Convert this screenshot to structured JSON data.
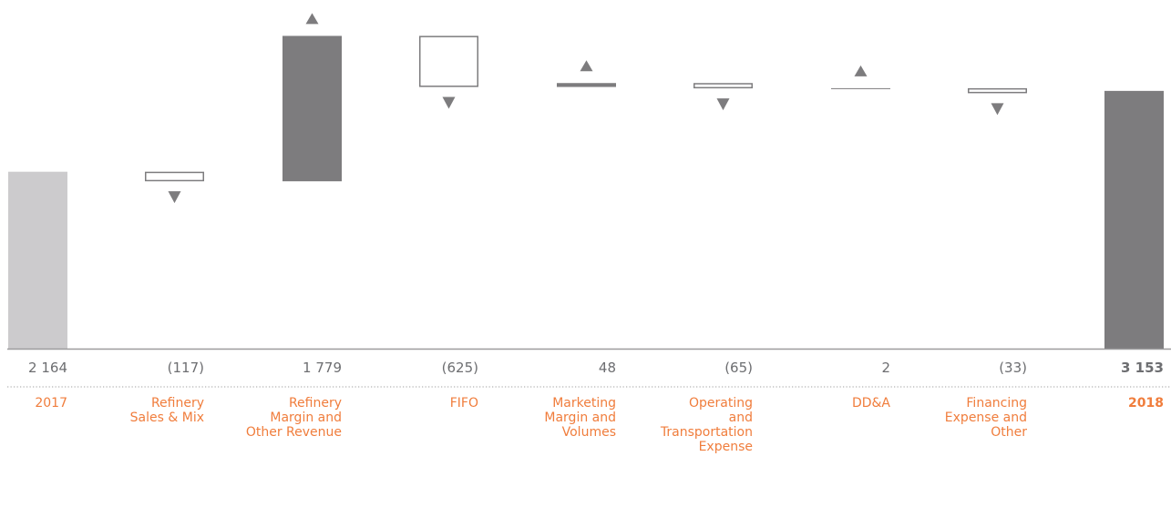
{
  "title": "",
  "colors": {
    "start_bar": "#cccbcd",
    "end_bar": "#7d7c7e",
    "increase": "#7d7c7e",
    "decrease_outline": "#7d7c7e",
    "value_text": "#6d6e71",
    "category_text": "#f07d3c",
    "baseline": "#9c9b9d",
    "dotted_rule": "#b5b5b5",
    "arrow": "#7d7c7e"
  },
  "chart_data": {
    "type": "waterfall",
    "units": "",
    "start": {
      "label": "2017",
      "value": 2164,
      "display": "2 164"
    },
    "steps": [
      {
        "label": "Refinery Sales & Mix",
        "lines": [
          "Refinery",
          "Sales & Mix"
        ],
        "value": -117,
        "display": "(117)"
      },
      {
        "label": "Refinery Margin and Other Revenue",
        "lines": [
          "Refinery",
          "Margin and",
          "Other Revenue"
        ],
        "value": 1779,
        "display": "1 779"
      },
      {
        "label": "FIFO",
        "lines": [
          "FIFO"
        ],
        "value": -625,
        "display": "(625)"
      },
      {
        "label": "Marketing Margin and Volumes",
        "lines": [
          "Marketing",
          "Margin and",
          "Volumes"
        ],
        "value": 48,
        "display": "48"
      },
      {
        "label": "Operating and Transportation Expense",
        "lines": [
          "Operating",
          "and",
          "Transportation",
          "Expense"
        ],
        "value": -65,
        "display": "(65)"
      },
      {
        "label": "DD&A",
        "lines": [
          "DD&A"
        ],
        "value": 2,
        "display": "2"
      },
      {
        "label": "Financing Expense and Other",
        "lines": [
          "Financing",
          "Expense and",
          "Other"
        ],
        "value": -33,
        "display": "(33)"
      }
    ],
    "end": {
      "label": "2018",
      "value": 3153,
      "display": "3 153"
    },
    "ylim": [
      0,
      4000
    ],
    "increase_marker": "up-triangle",
    "decrease_marker": "down-triangle",
    "grid": false
  }
}
